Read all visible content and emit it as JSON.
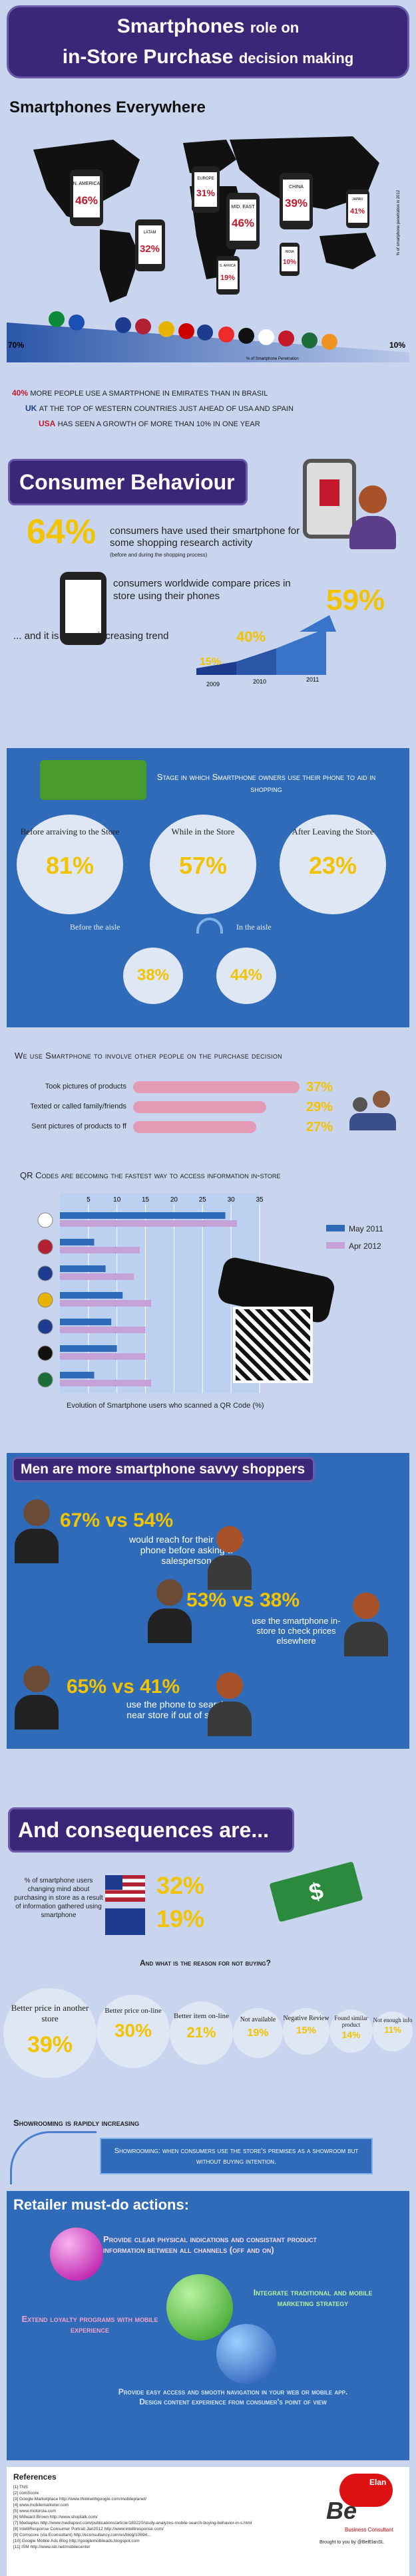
{
  "title": {
    "line1_big": "Smartphones",
    "line1_small": "role on",
    "line2_big": "in-Store Purchase",
    "line2_small": "decision making"
  },
  "everywhere": {
    "heading": "Smartphones Everywhere",
    "phones": [
      {
        "label": "N. AMERICA",
        "value": "46%"
      },
      {
        "label": "EUROPE",
        "value": "31%"
      },
      {
        "label": "MID. EAST",
        "value": "46%"
      },
      {
        "label": "CHINA",
        "value": "39%"
      },
      {
        "label": "JAPAN",
        "value": "41%"
      },
      {
        "label": "LATAM",
        "value": "32%"
      },
      {
        "label": "S. AFRICA",
        "value": "19%"
      },
      {
        "label": "INDIA",
        "value": "10%"
      }
    ],
    "axis_left": "70%",
    "axis_right": "10%",
    "axis_note": "% of Smartphone Penetration",
    "side_note": "% of smartphone penetration in 2012",
    "facts": [
      {
        "num": "40%",
        "text": "more people use a smartphone in Emirates than in Brasil"
      },
      {
        "num": "UK",
        "text": "at the top of Western countries just ahead of USA and Spain"
      },
      {
        "num": "USA",
        "text": "has seen a growth of more than 10% in one year"
      }
    ]
  },
  "behaviour": {
    "heading": "Consumer Behaviour",
    "stat1_num": "64%",
    "stat1_text": "consumers have used their smartphone for some shopping research activity",
    "stat1_sub": "(before and during the shopping process)",
    "stat2_text": "consumers worldwide compare prices in store using their phones",
    "stat2_num": "59%",
    "trend_text": "... and it is an ever increasing trend",
    "trend_points": [
      {
        "x": "2009",
        "y": "15%"
      },
      {
        "x": "2010",
        "y": "40%"
      },
      {
        "x": "2011",
        "y": "59%"
      }
    ]
  },
  "stages": {
    "heading": "Stage in which Smartphone owners use their phone to aid in shopping",
    "before": {
      "label": "Before arraiving to the Store",
      "value": "81%"
    },
    "while": {
      "label": "While in the Store",
      "value": "57%"
    },
    "after": {
      "label": "After Leaving the Store",
      "value": "23%"
    },
    "before_aisle": {
      "label": "Before the aisle",
      "value": "38%"
    },
    "in_aisle": {
      "label": "In the aisle",
      "value": "44%"
    }
  },
  "involve": {
    "heading": "We use Smartphone to involve other people on the purchase decision",
    "rows": [
      {
        "label": "Took pictures of products",
        "value": "37%"
      },
      {
        "label": "Texted or called family/friends",
        "value": "29%"
      },
      {
        "label": "Sent pictures of products to ff",
        "value": "27%"
      }
    ]
  },
  "qr": {
    "heading": "QR Codes are becoming the fastest way to access information in-store",
    "legend": [
      "May 2011",
      "Apr 2012"
    ],
    "axis": [
      "5",
      "10",
      "15",
      "20",
      "25",
      "30",
      "35"
    ],
    "caption": "Evolution of Smartphone users who scanned a QR Code (%)"
  },
  "chart_data": {
    "type": "bar",
    "title": "Evolution of Smartphone users who scanned a QR Code (%)",
    "xlim": [
      0,
      35
    ],
    "categories": [
      "Japan",
      "USA",
      "UK",
      "Spain",
      "France",
      "Germany",
      "Italy"
    ],
    "series": [
      {
        "name": "May 2011",
        "values": [
          29,
          6,
          8,
          11,
          9,
          10,
          6
        ]
      },
      {
        "name": "Apr 2012",
        "values": [
          31,
          14,
          13,
          16,
          15,
          15,
          16
        ]
      }
    ]
  },
  "men": {
    "heading": "Men are more smartphone savvy shoppers",
    "items": [
      {
        "num": "67% vs 54%",
        "text": "would reach for their mobile phone before asking a salesperson"
      },
      {
        "num": "53% vs 38%",
        "text": "use the smartphone in-store to check prices elsewhere"
      },
      {
        "num": "65% vs 41%",
        "text": "use the phone to search near store if out of stock"
      }
    ]
  },
  "consequences": {
    "heading": "And consequences are...",
    "changing_text": "% of smartphone users changing mind about purchasing in store as a result of information gathered using smartphone",
    "us_value": "32%",
    "eu_value": "19%",
    "reason_heading": "And what is the reason for not buying?",
    "reasons": [
      {
        "label": "Better price in another store",
        "value": "39%"
      },
      {
        "label": "Better price on-line",
        "value": "30%"
      },
      {
        "label": "Better item on-line",
        "value": "21%"
      },
      {
        "label": "Not available",
        "value": "19%"
      },
      {
        "label": "Negative Review",
        "value": "15%"
      },
      {
        "label": "Found similar product",
        "value": "14%"
      },
      {
        "label": "Not enough info",
        "value": "11%"
      }
    ]
  },
  "showrooming": {
    "heading": "Showrooming is rapidly increasing",
    "definition": "Showrooming: when consumers use the store's premises as a showroom but without buying intention."
  },
  "retailer": {
    "heading": "Retailer must-do actions:",
    "actions": [
      "Provide clear physical indications and consistant product information between all channels (off and on)",
      "Integrate traditional and mobile marketing strategy",
      "Extend loyalty programs with mobile experience",
      "Provide easy access and smooth navigation in your web or mobile app. Design content experience from consumer's point of view"
    ]
  },
  "references": {
    "heading": "References",
    "lines": [
      "[1] TNS",
      "[2] comScore",
      "[3] Google Marketplace http://www.thinkwithgoogle.com/mobileplanet/",
      "[4] www.mobilemarketer.com",
      "[5] www.motorola.com",
      "[6] Millward Brown http://www.shoptalk.com/",
      "[7] Mediaplus http://www.mediapost.com/publications/article/180220/study-analyzes-mobile-search-buying-behavior-in-s.html",
      "[8] IntelliResponse Consumer Portrait Jan2012 http://www.intelliresponse.com/",
      "[9] Comscore (via Econsultant) http://econsultancy.com/es/blog/10694...",
      "[10] Google Mobile Ads Blog http://googlemobileads.blogspot.com",
      "[11] ISM http://www.isb.net/mobilecenter"
    ]
  },
  "brand": {
    "name": "Elan",
    "mark": "Be",
    "tag": "Business Consultant",
    "credit": "Brought to you by @BelElanSL"
  }
}
